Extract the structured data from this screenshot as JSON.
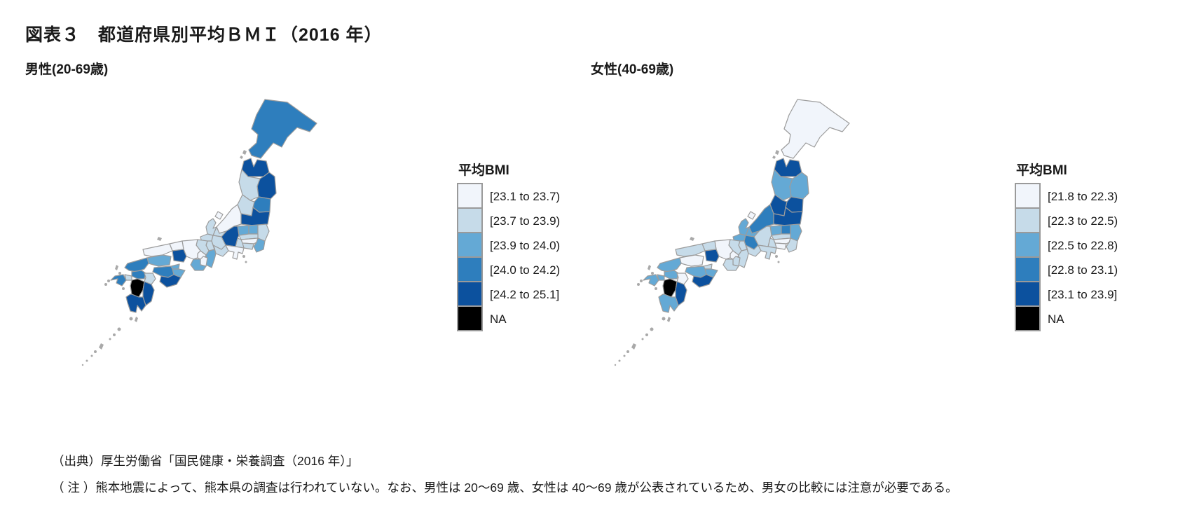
{
  "title": "図表３　都道府県別平均ＢＭＩ（2016 年）",
  "notes": {
    "source": "（出典）厚生労働省「国民健康・栄養調査（2016 年）」",
    "caution": "（ 注 ）熊本地震によって、熊本県の調査は行われていない。なお、男性は 20～69 歳、女性は 40～69 歳が公表されているため、男女の比較には注意が必要である。"
  },
  "palette": {
    "classes": [
      "#F1F5FB",
      "#C6DBE9",
      "#64A9D5",
      "#2E7EBD",
      "#0C519E"
    ],
    "na": "#000000",
    "minor_island": "#A9A9A9",
    "border": "#9C9C9C"
  },
  "chart_data": {
    "type": "choropleth",
    "title": "図表３　都道府県別平均ＢＭＩ（2016 年）",
    "legend_note": "class 1 = lightest blue … class 5 = darkest blue, 0 = NA (black)",
    "maps": [
      {
        "id": "male",
        "subtitle": "男性(20-69歳)",
        "legend_title": "平均BMI",
        "bins": [
          "[23.1 to 23.7)",
          "[23.7 to 23.9)",
          "[23.9 to 24.0)",
          "[24.0 to 24.2)",
          "[24.2 to 25.1]",
          "NA"
        ],
        "prefecture_class": {
          "hokkaido": 4,
          "aomori": 5,
          "iwate": 5,
          "akita": 2,
          "miyagi": 4,
          "yamagata": 2,
          "fukushima": 5,
          "niigata": 1,
          "sado": 1,
          "tochigi": 3,
          "ibaraki": 2,
          "gunma": 3,
          "saitama": 2,
          "chiba": 3,
          "tokyo": 1,
          "kanagawa": 2,
          "yamanashi": 2,
          "nagano": 5,
          "shizuoka": 1,
          "toyama": 2,
          "ishikawa": 2,
          "fukui": 2,
          "gifu": 2,
          "aichi": 2,
          "mie": 3,
          "shiga": 2,
          "kyoto": 2,
          "osaka": 1,
          "nara": 1,
          "wakayama": 3,
          "hyogo": 1,
          "tottori": 1,
          "okayama": 5,
          "shimane": 1,
          "hiroshima": 3,
          "yamaguchi": 4,
          "kagawa": 3,
          "tokushima": 3,
          "ehime": 4,
          "kochi": 5,
          "fukuoka": 4,
          "saga": 2,
          "nagasaki": 4,
          "oita": 2,
          "kumamoto": 0,
          "miyazaki": 5,
          "kagoshima": 5
        }
      },
      {
        "id": "female",
        "subtitle": "女性(40-69歳)",
        "legend_title": "平均BMI",
        "bins": [
          "[21.8 to 22.3)",
          "[22.3 to 22.5)",
          "[22.5 to 22.8)",
          "[22.8 to 23.1)",
          "[23.1 to 23.9]",
          "NA"
        ],
        "prefecture_class": {
          "hokkaido": 1,
          "aomori": 5,
          "iwate": 3,
          "akita": 3,
          "miyagi": 5,
          "yamagata": 5,
          "fukushima": 5,
          "niigata": 4,
          "sado": 1,
          "tochigi": 4,
          "ibaraki": 3,
          "gunma": 3,
          "saitama": 2,
          "chiba": 2,
          "tokyo": 1,
          "kanagawa": 1,
          "yamanashi": 2,
          "nagano": 2,
          "shizuoka": 2,
          "toyama": 3,
          "ishikawa": 3,
          "fukui": 3,
          "gifu": 4,
          "aichi": 2,
          "mie": 2,
          "shiga": 2,
          "kyoto": 2,
          "osaka": 1,
          "nara": 2,
          "wakayama": 2,
          "hyogo": 1,
          "tottori": 2,
          "okayama": 5,
          "shimane": 2,
          "hiroshima": 1,
          "yamaguchi": 3,
          "kagawa": 2,
          "tokushima": 3,
          "ehime": 3,
          "kochi": 5,
          "fukuoka": 3,
          "saga": 3,
          "nagasaki": 3,
          "oita": 1,
          "kumamoto": 0,
          "miyazaki": 5,
          "kagoshima": 3
        }
      }
    ]
  }
}
